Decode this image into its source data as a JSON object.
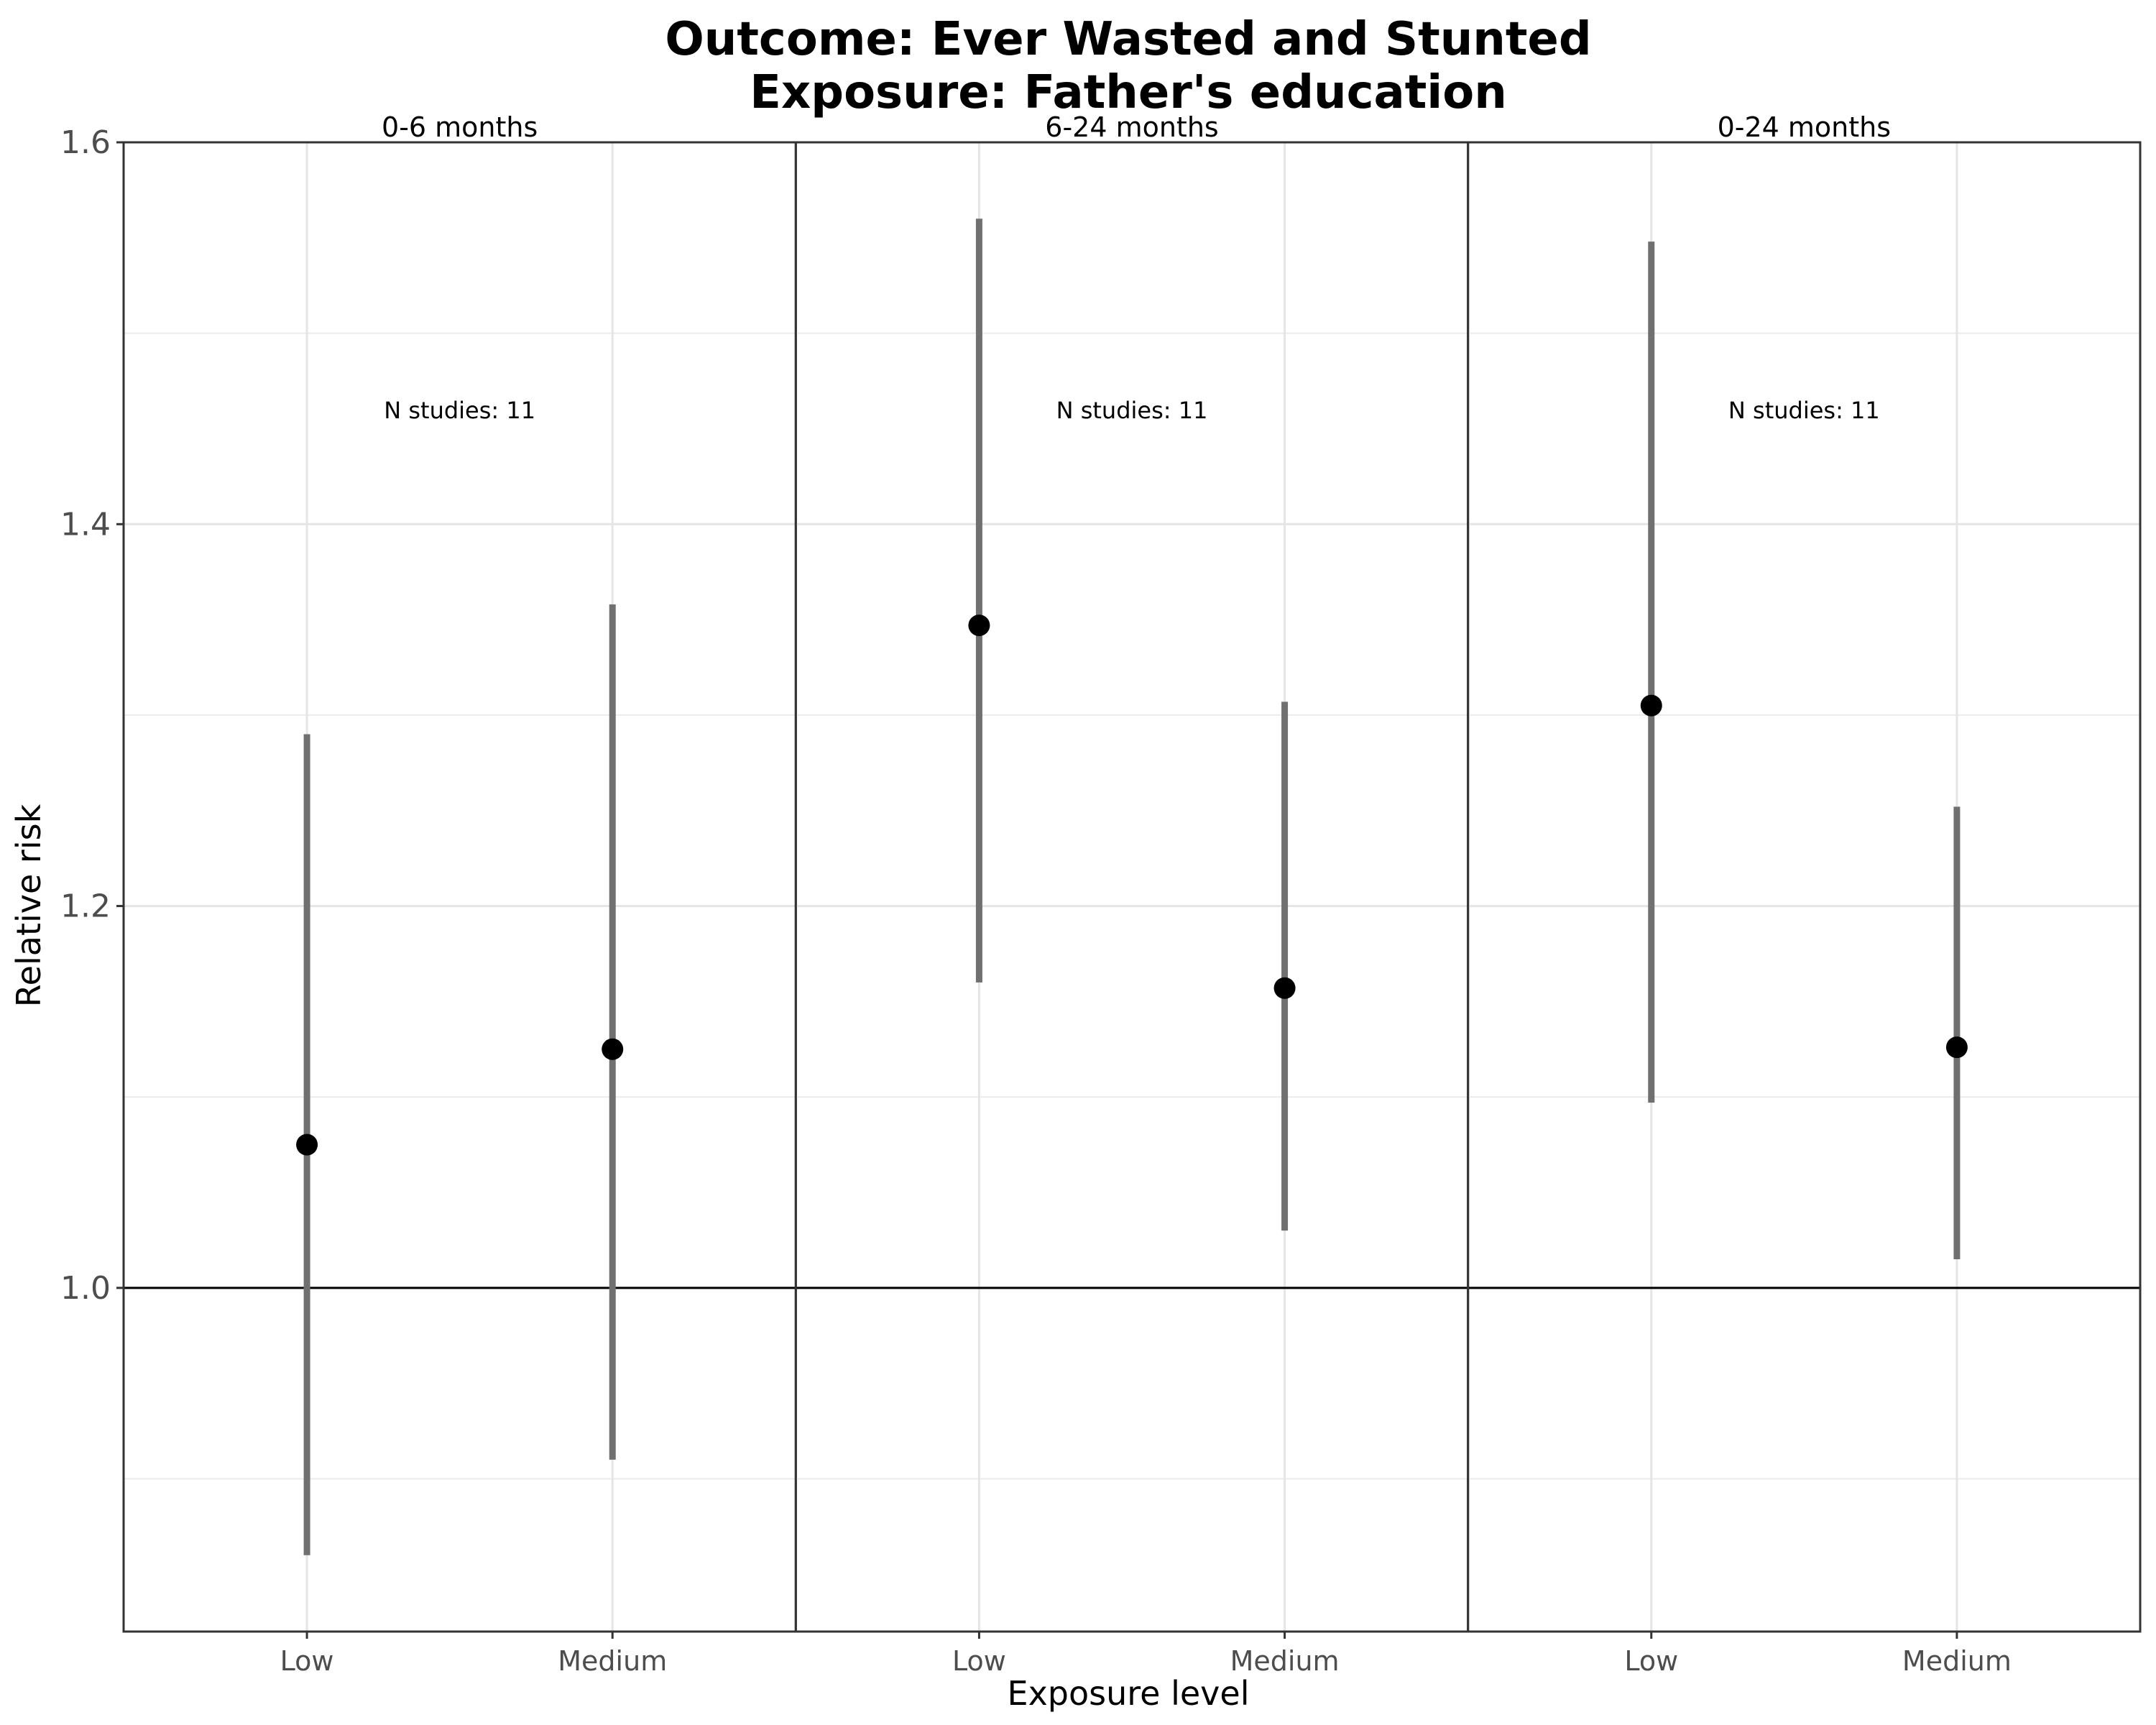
{
  "chart_data": {
    "type": "scatter",
    "title_line1": "Outcome: Ever Wasted and Stunted",
    "title_line2": "Exposure: Father's education",
    "xlabel": "Exposure level",
    "ylabel": "Relative risk",
    "ylim": [
      0.82,
      1.6
    ],
    "y_ticks": [
      "1.0",
      "1.2",
      "1.4",
      "1.6"
    ],
    "y_tick_values": [
      1.0,
      1.2,
      1.4,
      1.6
    ],
    "reference_line": 1.0,
    "categories": [
      "Low",
      "Medium"
    ],
    "grid": true,
    "panels": [
      {
        "label": "0-6 months",
        "annotation": "N studies: 11",
        "points": [
          {
            "x": "Low",
            "estimate": 1.075,
            "ci_lower": 0.86,
            "ci_upper": 1.29
          },
          {
            "x": "Medium",
            "estimate": 1.125,
            "ci_lower": 0.91,
            "ci_upper": 1.358
          }
        ]
      },
      {
        "label": "6-24 months",
        "annotation": "N studies: 11",
        "points": [
          {
            "x": "Low",
            "estimate": 1.347,
            "ci_lower": 1.16,
            "ci_upper": 1.56
          },
          {
            "x": "Medium",
            "estimate": 1.157,
            "ci_lower": 1.03,
            "ci_upper": 1.307
          }
        ]
      },
      {
        "label": "0-24 months",
        "annotation": "N studies: 11",
        "points": [
          {
            "x": "Low",
            "estimate": 1.305,
            "ci_lower": 1.097,
            "ci_upper": 1.548
          },
          {
            "x": "Medium",
            "estimate": 1.126,
            "ci_lower": 1.015,
            "ci_upper": 1.252
          }
        ]
      }
    ]
  }
}
